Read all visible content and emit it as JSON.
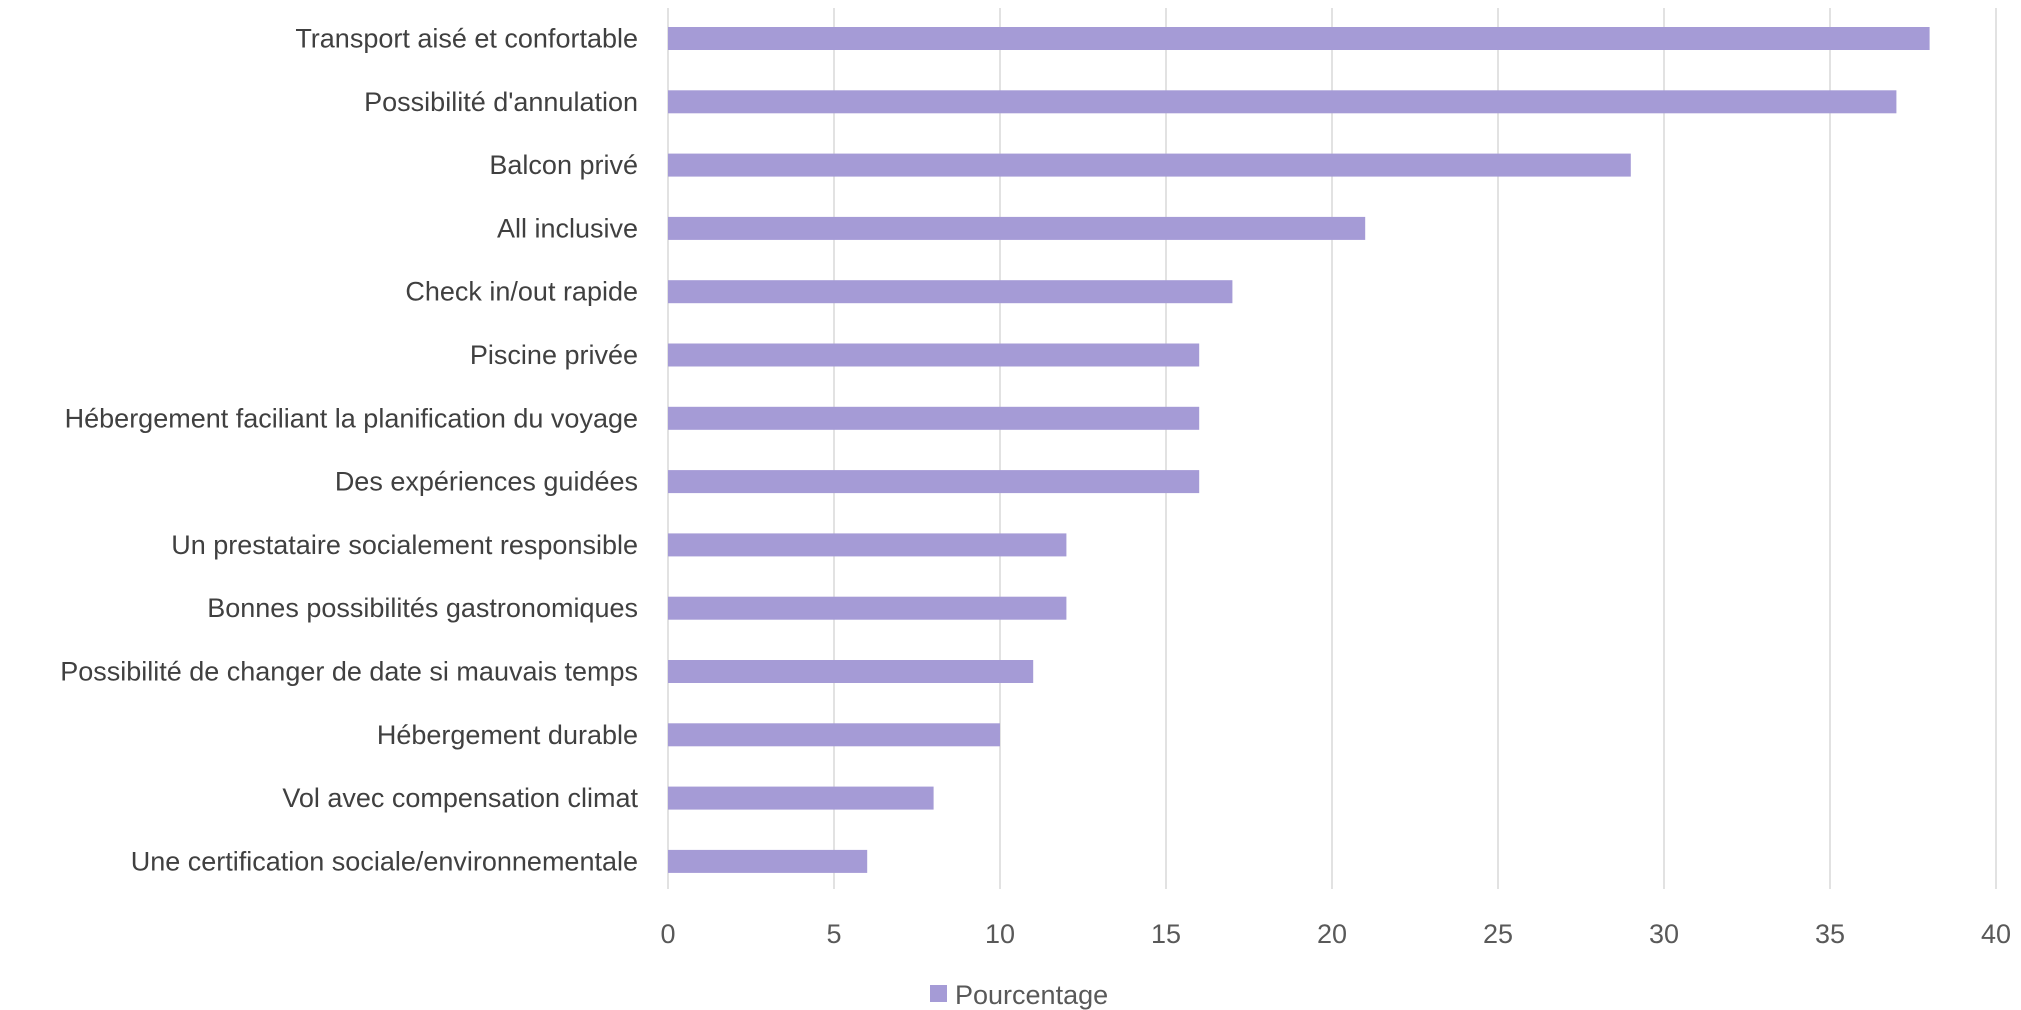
{
  "chart_data": {
    "type": "bar",
    "orientation": "horizontal",
    "categories": [
      "Transport aisé et confortable",
      "Possibilité d'annulation",
      "Balcon privé",
      "All inclusive",
      "Check in/out rapide",
      "Piscine privée",
      "Hébergement faciliant la planification du voyage",
      "Des expériences guidées",
      "Un prestataire socialement responsible",
      "Bonnes possibilités gastronomiques",
      "Possibilité de changer de date si mauvais temps",
      "Hébergement durable",
      "Vol avec compensation climat",
      "Une certification sociale/environnementale"
    ],
    "series": [
      {
        "name": "Pourcentage",
        "values": [
          38,
          37,
          29,
          21,
          17,
          16,
          16,
          16,
          12,
          12,
          11,
          10,
          8,
          6
        ],
        "color": "#a59bd6"
      }
    ],
    "xlim": [
      0,
      40
    ],
    "xticks": [
      0,
      5,
      10,
      15,
      20,
      25,
      30,
      35,
      40
    ],
    "grid": "vertical",
    "legend": "bottom-center",
    "title": "",
    "xlabel": "",
    "ylabel": ""
  }
}
